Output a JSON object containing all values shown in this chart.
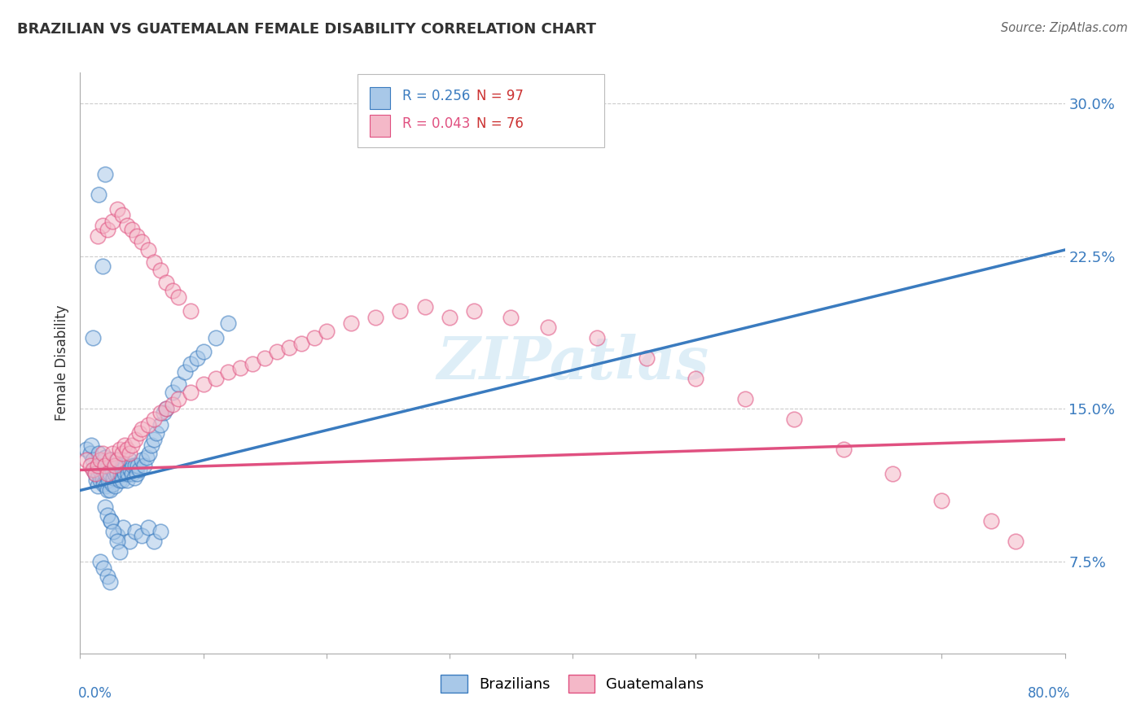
{
  "title": "BRAZILIAN VS GUATEMALAN FEMALE DISABILITY CORRELATION CHART",
  "source": "Source: ZipAtlas.com",
  "ylabel": "Female Disability",
  "yticks": [
    0.075,
    0.15,
    0.225,
    0.3
  ],
  "ytick_labels": [
    "7.5%",
    "15.0%",
    "22.5%",
    "30.0%"
  ],
  "xmin": 0.0,
  "xmax": 0.8,
  "ymin": 0.03,
  "ymax": 0.315,
  "color_brazil": "#a8c8e8",
  "color_guatemala": "#f4b8c8",
  "color_brazil_line": "#3a7bbf",
  "color_guatemala_line": "#e05080",
  "brazil_trend_start_x": 0.0,
  "brazil_trend_start_y": 0.11,
  "brazil_trend_end_x": 0.8,
  "brazil_trend_end_y": 0.228,
  "guatemala_trend_start_x": 0.0,
  "guatemala_trend_start_y": 0.12,
  "guatemala_trend_end_x": 0.8,
  "guatemala_trend_end_y": 0.135,
  "brazil_scatter_x": [
    0.005,
    0.008,
    0.009,
    0.01,
    0.01,
    0.011,
    0.012,
    0.013,
    0.014,
    0.015,
    0.015,
    0.016,
    0.016,
    0.017,
    0.018,
    0.018,
    0.019,
    0.019,
    0.02,
    0.02,
    0.021,
    0.021,
    0.022,
    0.022,
    0.023,
    0.023,
    0.024,
    0.024,
    0.025,
    0.026,
    0.026,
    0.027,
    0.028,
    0.028,
    0.029,
    0.03,
    0.03,
    0.031,
    0.032,
    0.033,
    0.034,
    0.034,
    0.035,
    0.036,
    0.037,
    0.038,
    0.039,
    0.04,
    0.041,
    0.042,
    0.043,
    0.044,
    0.045,
    0.046,
    0.047,
    0.048,
    0.05,
    0.052,
    0.054,
    0.056,
    0.058,
    0.06,
    0.062,
    0.065,
    0.068,
    0.07,
    0.075,
    0.08,
    0.085,
    0.09,
    0.095,
    0.1,
    0.11,
    0.12,
    0.025,
    0.03,
    0.035,
    0.04,
    0.045,
    0.05,
    0.055,
    0.06,
    0.065,
    0.02,
    0.022,
    0.025,
    0.027,
    0.03,
    0.032,
    0.015,
    0.018,
    0.02,
    0.016,
    0.019,
    0.022,
    0.024
  ],
  "brazil_scatter_y": [
    0.13,
    0.128,
    0.132,
    0.185,
    0.125,
    0.12,
    0.118,
    0.115,
    0.112,
    0.128,
    0.118,
    0.122,
    0.115,
    0.119,
    0.124,
    0.116,
    0.121,
    0.113,
    0.126,
    0.118,
    0.12,
    0.112,
    0.117,
    0.11,
    0.122,
    0.115,
    0.118,
    0.11,
    0.125,
    0.12,
    0.113,
    0.116,
    0.118,
    0.112,
    0.12,
    0.125,
    0.118,
    0.122,
    0.115,
    0.118,
    0.122,
    0.115,
    0.12,
    0.118,
    0.122,
    0.115,
    0.118,
    0.125,
    0.12,
    0.118,
    0.122,
    0.116,
    0.122,
    0.118,
    0.122,
    0.12,
    0.125,
    0.122,
    0.126,
    0.128,
    0.132,
    0.135,
    0.138,
    0.142,
    0.148,
    0.15,
    0.158,
    0.162,
    0.168,
    0.172,
    0.175,
    0.178,
    0.185,
    0.192,
    0.095,
    0.088,
    0.092,
    0.085,
    0.09,
    0.088,
    0.092,
    0.085,
    0.09,
    0.102,
    0.098,
    0.095,
    0.09,
    0.085,
    0.08,
    0.255,
    0.22,
    0.265,
    0.075,
    0.072,
    0.068,
    0.065
  ],
  "guatemala_scatter_x": [
    0.005,
    0.008,
    0.01,
    0.012,
    0.014,
    0.016,
    0.018,
    0.02,
    0.022,
    0.024,
    0.026,
    0.028,
    0.03,
    0.032,
    0.034,
    0.036,
    0.038,
    0.04,
    0.042,
    0.045,
    0.048,
    0.05,
    0.055,
    0.06,
    0.065,
    0.07,
    0.075,
    0.08,
    0.09,
    0.1,
    0.11,
    0.12,
    0.13,
    0.14,
    0.15,
    0.16,
    0.17,
    0.18,
    0.19,
    0.2,
    0.22,
    0.24,
    0.26,
    0.28,
    0.3,
    0.32,
    0.35,
    0.38,
    0.42,
    0.46,
    0.5,
    0.54,
    0.58,
    0.62,
    0.66,
    0.7,
    0.74,
    0.76,
    0.014,
    0.018,
    0.022,
    0.026,
    0.03,
    0.034,
    0.038,
    0.042,
    0.046,
    0.05,
    0.055,
    0.06,
    0.065,
    0.07,
    0.075,
    0.08,
    0.09
  ],
  "guatemala_scatter_y": [
    0.125,
    0.122,
    0.12,
    0.118,
    0.122,
    0.125,
    0.128,
    0.122,
    0.118,
    0.125,
    0.128,
    0.122,
    0.125,
    0.13,
    0.128,
    0.132,
    0.13,
    0.128,
    0.132,
    0.135,
    0.138,
    0.14,
    0.142,
    0.145,
    0.148,
    0.15,
    0.152,
    0.155,
    0.158,
    0.162,
    0.165,
    0.168,
    0.17,
    0.172,
    0.175,
    0.178,
    0.18,
    0.182,
    0.185,
    0.188,
    0.192,
    0.195,
    0.198,
    0.2,
    0.195,
    0.198,
    0.195,
    0.19,
    0.185,
    0.175,
    0.165,
    0.155,
    0.145,
    0.13,
    0.118,
    0.105,
    0.095,
    0.085,
    0.235,
    0.24,
    0.238,
    0.242,
    0.248,
    0.245,
    0.24,
    0.238,
    0.235,
    0.232,
    0.228,
    0.222,
    0.218,
    0.212,
    0.208,
    0.205,
    0.198
  ],
  "watermark_text": "ZIPatlas",
  "legend_r1_label": "R = 0.256",
  "legend_n1_label": "N = 97",
  "legend_r2_label": "R = 0.043",
  "legend_n2_label": "N = 76"
}
